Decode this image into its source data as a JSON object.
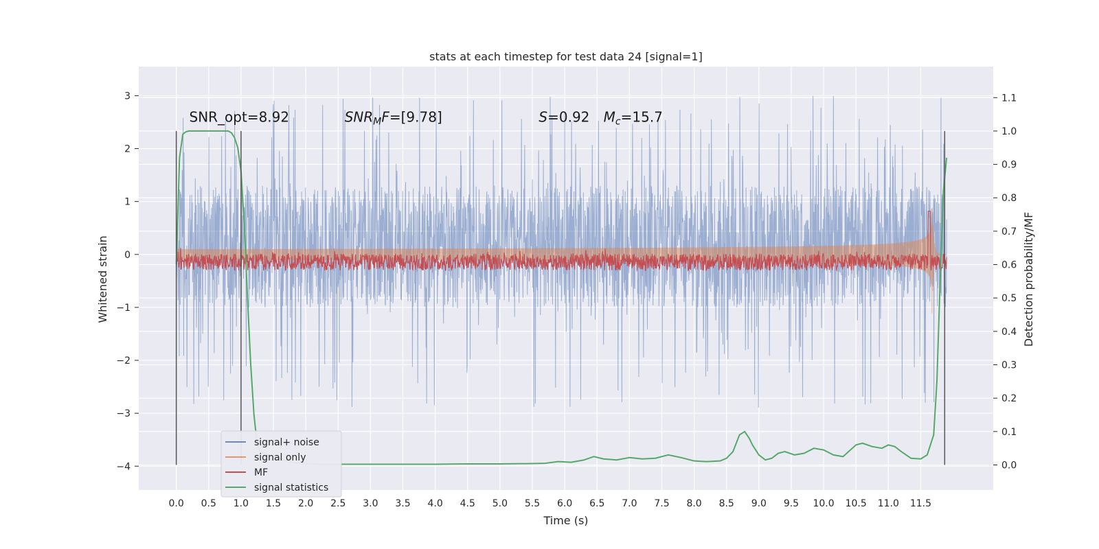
{
  "chart_data": {
    "type": "line",
    "title": "stats at each timestep for test data 24 [signal=1]",
    "xlabel": "Time (s)",
    "ylabel": "Whitened strain",
    "y2label": "Detection probability/MF",
    "xlim": [
      -0.58,
      12.62
    ],
    "ylim": [
      -4.45,
      3.55
    ],
    "y2lim": [
      -0.075,
      1.193
    ],
    "xticks": [
      0.0,
      0.5,
      1.0,
      1.5,
      2.0,
      2.5,
      3.0,
      3.5,
      4.0,
      4.5,
      5.0,
      5.5,
      6.0,
      6.5,
      7.0,
      7.5,
      8.0,
      8.5,
      9.0,
      9.5,
      10.0,
      10.5,
      11.0,
      11.5
    ],
    "xtick_labels": [
      "0.0",
      "0.5",
      "1.0",
      "1.5",
      "2.0",
      "2.5",
      "3.0",
      "3.5",
      "4.0",
      "4.5",
      "5.0",
      "5.5",
      "6.0",
      "6.5",
      "7.0",
      "7.5",
      "8.0",
      "8.5",
      "9.0",
      "9.5",
      "10.0",
      "10.5",
      "11.0",
      "11.5"
    ],
    "yticks": [
      -4,
      -3,
      -2,
      -1,
      0,
      1,
      2,
      3
    ],
    "ytick_labels": [
      "−4",
      "−3",
      "−2",
      "−1",
      "0",
      "1",
      "2",
      "3"
    ],
    "y2ticks": [
      0.0,
      0.1,
      0.2,
      0.3,
      0.4,
      0.5,
      0.6,
      0.7,
      0.8,
      0.9,
      1.0,
      1.1
    ],
    "y2tick_labels": [
      "0.0",
      "0.1",
      "0.2",
      "0.3",
      "0.4",
      "0.5",
      "0.6",
      "0.7",
      "0.8",
      "0.9",
      "1.0",
      "1.1"
    ],
    "vlines": [
      0.0,
      1.0,
      11.87
    ],
    "grid": true,
    "legend_position": "lower-left",
    "annotations": [
      {
        "segments": [
          {
            "text": "SNR_opt=8.92",
            "style": "normal"
          }
        ],
        "x": 0.2
      },
      {
        "segments": [
          {
            "text": "SNR",
            "style": "italic"
          },
          {
            "text": "M",
            "style": "italic-sub"
          },
          {
            "text": "F",
            "style": "italic"
          },
          {
            "text": "=[9.78]",
            "style": "normal"
          }
        ],
        "x": 2.6
      },
      {
        "segments": [
          {
            "text": "S",
            "style": "italic"
          },
          {
            "text": "=0.92",
            "style": "normal"
          }
        ],
        "x": 5.6
      },
      {
        "segments": [
          {
            "text": "M",
            "style": "italic"
          },
          {
            "text": "c",
            "style": "italic-sub"
          },
          {
            "text": "=15.7",
            "style": "normal"
          }
        ],
        "x": 6.6
      }
    ],
    "annotation_y": 2.4,
    "series": [
      {
        "name": "signal+ noise",
        "kind": "noise",
        "color": "#4c72b0",
        "opacity": 0.5,
        "x_range": [
          0.0,
          11.9
        ],
        "band": [
          -1.0,
          1.3
        ],
        "spike_max": 3.0,
        "spike_min": -2.9
      },
      {
        "name": "signal only",
        "kind": "chirp",
        "color": "#dd8452",
        "opacity": 0.5,
        "x_range": [
          0.0,
          11.9
        ],
        "base_amplitude": 0.1,
        "peak_time": 11.67,
        "peak_amplitude": 1.3
      },
      {
        "name": "MF",
        "kind": "mf",
        "axis": "right",
        "color": "#c44e52",
        "x_range": [
          0.0,
          11.9
        ],
        "base": 0.6,
        "jitter": 0.05,
        "peak_x": 11.63,
        "peak_y": 0.76
      },
      {
        "name": "signal statistics",
        "kind": "line",
        "axis": "right",
        "color": "#55a868",
        "x": [
          0.0,
          0.05,
          0.1,
          0.15,
          0.2,
          0.3,
          0.4,
          0.5,
          0.6,
          0.7,
          0.8,
          0.85,
          0.9,
          0.95,
          1.0,
          1.05,
          1.1,
          1.15,
          1.2,
          1.25,
          1.3,
          1.35,
          1.4,
          1.5,
          1.6,
          1.7,
          1.8,
          1.9,
          2.0,
          2.2,
          2.5,
          3.0,
          3.5,
          4.0,
          4.5,
          5.0,
          5.5,
          5.7,
          5.9,
          6.1,
          6.3,
          6.45,
          6.6,
          6.8,
          7.0,
          7.2,
          7.4,
          7.6,
          7.8,
          8.0,
          8.2,
          8.4,
          8.5,
          8.6,
          8.7,
          8.78,
          8.85,
          8.9,
          9.0,
          9.1,
          9.2,
          9.3,
          9.4,
          9.55,
          9.7,
          9.85,
          10.0,
          10.15,
          10.3,
          10.5,
          10.6,
          10.75,
          10.9,
          11.0,
          11.1,
          11.2,
          11.35,
          11.5,
          11.6,
          11.65,
          11.7,
          11.75,
          11.8,
          11.85,
          11.9
        ],
        "y": [
          0.6,
          0.92,
          0.99,
          0.998,
          1.0,
          1.0,
          1.0,
          1.0,
          1.0,
          1.0,
          1.0,
          0.995,
          0.98,
          0.95,
          0.88,
          0.72,
          0.5,
          0.3,
          0.15,
          0.06,
          0.04,
          0.035,
          0.032,
          0.025,
          0.018,
          0.012,
          0.008,
          0.005,
          0.003,
          0.002,
          0.002,
          0.002,
          0.002,
          0.002,
          0.003,
          0.003,
          0.004,
          0.005,
          0.01,
          0.008,
          0.015,
          0.025,
          0.018,
          0.015,
          0.022,
          0.018,
          0.02,
          0.03,
          0.022,
          0.012,
          0.01,
          0.012,
          0.02,
          0.04,
          0.09,
          0.1,
          0.08,
          0.06,
          0.03,
          0.015,
          0.02,
          0.035,
          0.04,
          0.03,
          0.035,
          0.05,
          0.045,
          0.03,
          0.025,
          0.06,
          0.065,
          0.055,
          0.05,
          0.06,
          0.055,
          0.04,
          0.02,
          0.018,
          0.03,
          0.06,
          0.09,
          0.25,
          0.55,
          0.82,
          0.92
        ]
      }
    ]
  }
}
